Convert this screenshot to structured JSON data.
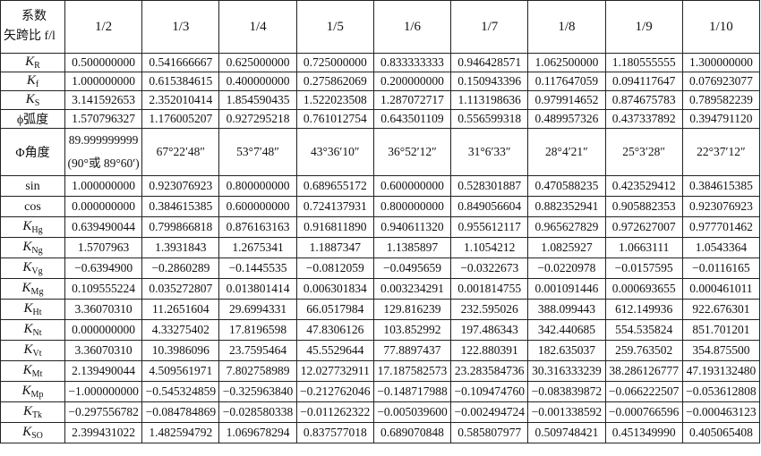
{
  "header": {
    "label_line1": "系数",
    "label_line2": "矢跨比 f/l",
    "columns": [
      "1/2",
      "1/3",
      "1/4",
      "1/5",
      "1/6",
      "1/7",
      "1/8",
      "1/9",
      "1/10"
    ]
  },
  "rows": [
    {
      "base": "K",
      "sub": "R",
      "values": [
        "0.500000000",
        "0.541666667",
        "0.625000000",
        "0.725000000",
        "0.833333333",
        "0.946428571",
        "1.062500000",
        "1.180555555",
        "1.300000000"
      ]
    },
    {
      "base": "K",
      "sub": "f",
      "values": [
        "1.000000000",
        "0.615384615",
        "0.400000000",
        "0.275862069",
        "0.200000000",
        "0.150943396",
        "0.117647059",
        "0.094117647",
        "0.076923077"
      ]
    },
    {
      "base": "K",
      "sub": "S",
      "values": [
        "3.141592653",
        "2.352010414",
        "1.854590435",
        "1.522023508",
        "1.287072717",
        "1.113198636",
        "0.979914652",
        "0.874675783",
        "0.789582239"
      ]
    },
    {
      "label": "ϕ弧度",
      "values": [
        "1.570796327",
        "1.176005207",
        "0.927295218",
        "0.761012754",
        "0.643501109",
        "0.556599318",
        "0.489957326",
        "0.437337892",
        "0.394791120"
      ]
    },
    {
      "label": "Φ角度",
      "tall": true,
      "values": [
        "89.999999999",
        "67°22′48″",
        "53°7′48″",
        "43°36′10″",
        "36°52′12″",
        "31°6′33″",
        "28°4′21″",
        "25°3′28″",
        "22°37′12″"
      ],
      "note": "(90°或 89°60′)"
    },
    {
      "label": "sin",
      "values": [
        "1.000000000",
        "0.923076923",
        "0.800000000",
        "0.689655172",
        "0.600000000",
        "0.528301887",
        "0.470588235",
        "0.423529412",
        "0.384615385"
      ]
    },
    {
      "label": "cos",
      "values": [
        "0.000000000",
        "0.384615385",
        "0.600000000",
        "0.724137931",
        "0.800000000",
        "0.849056604",
        "0.882352941",
        "0.905882353",
        "0.923076923"
      ]
    },
    {
      "base": "K",
      "sub": "Hg",
      "values": [
        "0.639490044",
        "0.799866818",
        "0.876163163",
        "0.916811890",
        "0.940611320",
        "0.955612117",
        "0.965627829",
        "0.972627007",
        "0.977701462"
      ]
    },
    {
      "base": "K",
      "sub": "Ng",
      "values": [
        "1.5707963",
        "1.3931843",
        "1.2675341",
        "1.1887347",
        "1.1385897",
        "1.1054212",
        "1.0825927",
        "1.0663111",
        "1.0543364"
      ]
    },
    {
      "base": "K",
      "sub": "Vg",
      "values": [
        "−0.6394900",
        "−0.2860289",
        "−0.1445535",
        "−0.0812059",
        "−0.0495659",
        "−0.0322673",
        "−0.0220978",
        "−0.0157595",
        "−0.0116165"
      ]
    },
    {
      "base": "K",
      "sub": "Mg",
      "values": [
        "0.109555224",
        "0.035272807",
        "0.013801414",
        "0.006301834",
        "0.003234291",
        "0.001814755",
        "0.001091446",
        "0.000693655",
        "0.000461011"
      ]
    },
    {
      "base": "K",
      "sub": "Ht",
      "values": [
        "3.36070310",
        "11.2651604",
        "29.6994331",
        "66.0517984",
        "129.816239",
        "232.595026",
        "388.099443",
        "612.149936",
        "922.676301"
      ]
    },
    {
      "base": "K",
      "sub": "Nt",
      "values": [
        "0.000000000",
        "4.33275402",
        "17.8196598",
        "47.8306126",
        "103.852992",
        "197.486343",
        "342.440685",
        "554.535824",
        "851.701201"
      ]
    },
    {
      "base": "K",
      "sub": "Vt",
      "values": [
        "3.36070310",
        "10.3986096",
        "23.7595464",
        "45.5529644",
        "77.8897437",
        "122.880391",
        "182.635037",
        "259.763502",
        "354.875500"
      ]
    },
    {
      "base": "K",
      "sub": "Mt",
      "values": [
        "2.139490044",
        "4.509561971",
        "7.802758989",
        "12.027732911",
        "17.187582573",
        "23.283584736",
        "30.316333239",
        "38.286126777",
        "47.193132480"
      ]
    },
    {
      "base": "K",
      "sub": "Mp",
      "values": [
        "−1.000000000",
        "−0.545324859",
        "−0.325963840",
        "−0.212762046",
        "−0.148717988",
        "−0.109474760",
        "−0.083839872",
        "−0.066222507",
        "−0.053612808"
      ]
    },
    {
      "base": "K",
      "sub": "Tk",
      "values": [
        "−0.297556782",
        "−0.084784869",
        "−0.028580338",
        "−0.011262322",
        "−0.005039600",
        "−0.002494724",
        "−0.001338592",
        "−0.000766596",
        "−0.000463123"
      ]
    },
    {
      "base": "K",
      "sub": "SO",
      "values": [
        "2.399431022",
        "1.482594792",
        "1.069678294",
        "0.837577018",
        "0.689070848",
        "0.585807977",
        "0.509748421",
        "0.451349990",
        "0.405065408"
      ]
    }
  ]
}
